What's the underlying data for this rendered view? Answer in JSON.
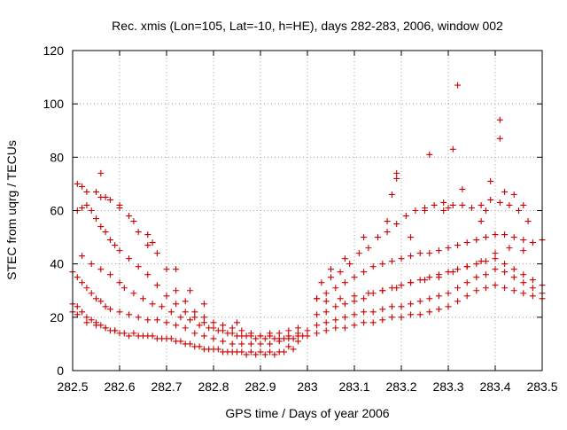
{
  "chart_data": {
    "type": "scatter",
    "title": "Rec. xmis (Lon=105, Lat=-10, h=HE), days 282-283, 2006, window 002",
    "xlabel": "GPS time / Days of year 2006",
    "ylabel": "STEC from uqrg / TECUs",
    "xlim": [
      282.5,
      283.5
    ],
    "ylim": [
      0,
      120
    ],
    "x_ticks": [
      282.5,
      282.6,
      282.7,
      282.8,
      282.9,
      283,
      283.1,
      283.2,
      283.3,
      283.4,
      283.5
    ],
    "x_tick_labels": [
      "282.5",
      "282.6",
      "282.7",
      "282.8",
      "282.9",
      "283",
      "283.1",
      "283.2",
      "283.3",
      "283.4",
      "283.5"
    ],
    "y_ticks": [
      0,
      20,
      40,
      60,
      80,
      100,
      120
    ],
    "y_tick_labels": [
      "0",
      "20",
      "40",
      "60",
      "80",
      "100",
      "120"
    ],
    "grid": true,
    "marker": "+",
    "color": "#cc0000",
    "series": [
      {
        "x": [
          282.5,
          282.5,
          282.51,
          282.51,
          282.52,
          282.53,
          282.54,
          282.55,
          282.56,
          282.57,
          282.58,
          282.59,
          282.6,
          282.62,
          282.64,
          282.66,
          282.68,
          282.7,
          282.72,
          282.74,
          282.76,
          282.78,
          282.8,
          282.82,
          282.84,
          282.86,
          282.88,
          282.9,
          282.92,
          282.94,
          282.96,
          282.98,
          283.0,
          283.02,
          283.04,
          283.06,
          283.08,
          283.1,
          283.12,
          283.14,
          283.16,
          283.18,
          283.2,
          283.22,
          283.24,
          283.26,
          283.28,
          283.3,
          283.32,
          283.34,
          283.36,
          283.38,
          283.4,
          283.42,
          283.44,
          283.46,
          283.48,
          283.5
        ],
        "values": [
          25,
          22,
          24,
          21,
          22,
          20,
          19,
          18,
          17,
          16,
          15,
          15,
          14,
          13,
          13,
          13,
          12,
          12,
          11,
          10,
          9,
          8,
          8,
          7,
          7,
          7,
          7,
          7,
          7,
          7,
          9,
          11,
          13,
          14,
          15,
          16,
          16,
          17,
          18,
          18,
          19,
          20,
          20,
          21,
          21,
          22,
          23,
          24,
          26,
          28,
          30,
          31,
          32,
          31,
          30,
          29,
          28,
          27
        ]
      },
      {
        "x": [
          282.5,
          282.51,
          282.52,
          282.53,
          282.54,
          282.55,
          282.56,
          282.57,
          282.58,
          282.6,
          282.62,
          282.64,
          282.66,
          282.68,
          282.7,
          282.72,
          282.74,
          282.76,
          282.78,
          282.8,
          282.82,
          282.84,
          282.86,
          282.88,
          282.9,
          282.92,
          282.94,
          282.96,
          282.98,
          283.0,
          283.02,
          283.04,
          283.06,
          283.08,
          283.1,
          283.12,
          283.14,
          283.16,
          283.18,
          283.2,
          283.22,
          283.24,
          283.26,
          283.28,
          283.3,
          283.32,
          283.34,
          283.36,
          283.38,
          283.4,
          283.42,
          283.44,
          283.46,
          283.48,
          283.5
        ],
        "values": [
          37,
          35,
          33,
          31,
          29,
          27,
          26,
          24,
          23,
          22,
          21,
          20,
          19,
          19,
          18,
          17,
          16,
          14,
          13,
          12,
          11,
          10,
          10,
          10,
          10,
          10,
          11,
          12,
          13,
          15,
          17,
          18,
          19,
          20,
          21,
          22,
          22,
          23,
          24,
          24,
          25,
          26,
          27,
          28,
          29,
          31,
          33,
          35,
          36,
          38,
          37,
          35,
          33,
          31,
          29
        ]
      },
      {
        "x": [
          282.51,
          282.52,
          282.53,
          282.54,
          282.55,
          282.56,
          282.57,
          282.58,
          282.59,
          282.6,
          282.62,
          282.64,
          282.66,
          282.68,
          282.7,
          282.72,
          282.74,
          282.76,
          282.78,
          282.8,
          282.82,
          282.84,
          282.86,
          282.88,
          282.9,
          282.92,
          282.94,
          282.96,
          282.98,
          283.02,
          283.04,
          283.06,
          283.08,
          283.1,
          283.12,
          283.14,
          283.16,
          283.18,
          283.2,
          283.22,
          283.24,
          283.26,
          283.28,
          283.3,
          283.32,
          283.34,
          283.36,
          283.38,
          283.4,
          283.42,
          283.44,
          283.46,
          283.48,
          283.5
        ],
        "values": [
          60,
          61,
          62,
          60,
          57,
          54,
          52,
          49,
          47,
          45,
          42,
          39,
          36,
          32,
          28,
          25,
          22,
          20,
          18,
          16,
          15,
          14,
          13,
          13,
          13,
          14,
          14,
          15,
          16,
          27,
          29,
          31,
          33,
          35,
          37,
          39,
          40,
          41,
          42,
          43,
          44,
          44,
          45,
          46,
          47,
          48,
          49,
          50,
          51,
          51,
          50,
          49,
          48,
          49
        ]
      },
      {
        "x": [
          282.56,
          282.58,
          282.6,
          282.62,
          282.64,
          282.66,
          282.68,
          282.7,
          282.72,
          282.74,
          282.76,
          282.78,
          282.8,
          282.82,
          282.84,
          282.86,
          282.88,
          282.9,
          282.92,
          282.94,
          282.96,
          282.98,
          283.03,
          283.05,
          283.07,
          283.09,
          283.11,
          283.13,
          283.15,
          283.17,
          283.19,
          283.21,
          283.23,
          283.25,
          283.27,
          283.29,
          283.31,
          283.33,
          283.35,
          283.37,
          283.39,
          283.41,
          283.43,
          283.45,
          283.47
        ],
        "values": [
          65,
          64,
          62,
          58,
          52,
          47,
          44,
          38,
          30,
          26,
          22,
          20,
          18,
          17,
          16,
          15,
          14,
          13,
          13,
          12,
          13,
          14,
          33,
          35,
          37,
          40,
          44,
          46,
          50,
          52,
          55,
          58,
          60,
          61,
          62,
          63,
          62,
          62,
          61,
          62,
          64,
          63,
          62,
          60,
          56
        ]
      },
      {
        "x": [
          282.52,
          282.54,
          282.56,
          282.58,
          282.6,
          282.61,
          282.63,
          282.65,
          282.67,
          282.69,
          282.71,
          282.73,
          282.75,
          282.77,
          282.79,
          282.81,
          282.83,
          282.85,
          282.87,
          282.89,
          282.91,
          282.93,
          282.95,
          282.97,
          282.99,
          283.02,
          283.04,
          283.06,
          283.08,
          283.1,
          283.12,
          283.14,
          283.16,
          283.18,
          283.2,
          283.22,
          283.24,
          283.26,
          283.28,
          283.3,
          283.32,
          283.34,
          283.36,
          283.38,
          283.4,
          283.42,
          283.44,
          283.46,
          283.48,
          283.5
        ],
        "values": [
          43,
          40,
          38,
          36,
          33,
          31,
          29,
          27,
          25,
          24,
          22,
          20,
          19,
          17,
          16,
          15,
          14,
          13,
          13,
          12,
          12,
          12,
          12,
          12,
          13,
          21,
          22,
          24,
          25,
          26,
          27,
          29,
          30,
          31,
          32,
          33,
          34,
          35,
          36,
          37,
          38,
          39,
          40,
          41,
          42,
          40,
          38,
          36,
          34,
          32
        ]
      },
      {
        "x": [
          283.04,
          283.07,
          283.1,
          283.13,
          283.16,
          283.19,
          283.22,
          283.25,
          283.28,
          283.31,
          283.34,
          283.37,
          283.4,
          283.43,
          283.46
        ],
        "values": [
          26,
          27,
          28,
          29,
          30,
          31,
          33,
          34,
          35,
          37,
          39,
          41,
          44,
          46,
          45
        ]
      },
      {
        "x": [
          282.53,
          282.55,
          282.57,
          282.59,
          282.61,
          282.63,
          282.65,
          282.67,
          282.69,
          282.71,
          282.73,
          282.75,
          282.77,
          282.79,
          282.81,
          282.83,
          282.85,
          282.87,
          282.89,
          282.91,
          282.93,
          282.95,
          282.97
        ],
        "values": [
          18,
          17,
          16,
          15,
          14,
          14,
          13,
          13,
          12,
          12,
          11,
          10,
          9,
          8,
          8,
          7,
          7,
          6,
          6,
          6,
          6,
          7,
          8
        ]
      },
      {
        "x": [
          282.51,
          282.52,
          282.53,
          282.55,
          282.56,
          282.57,
          282.6,
          282.63,
          282.66,
          282.67,
          282.72,
          282.75,
          282.78,
          282.85,
          283.02,
          283.05,
          283.08,
          283.12,
          283.17,
          283.18,
          283.19,
          283.19,
          283.22,
          283.25,
          283.26,
          283.29,
          283.3,
          283.31,
          283.32,
          283.33,
          283.37,
          283.38,
          283.39,
          283.41,
          283.41,
          283.42,
          283.44,
          283.46
        ],
        "values": [
          70,
          69,
          67,
          67,
          74,
          65,
          61,
          56,
          51,
          48,
          38,
          30,
          25,
          18,
          27,
          38,
          42,
          50,
          56,
          66,
          74,
          72,
          50,
          60,
          81,
          60,
          61,
          83,
          107,
          68,
          56,
          60,
          71,
          94,
          87,
          67,
          66,
          62
        ]
      }
    ]
  }
}
